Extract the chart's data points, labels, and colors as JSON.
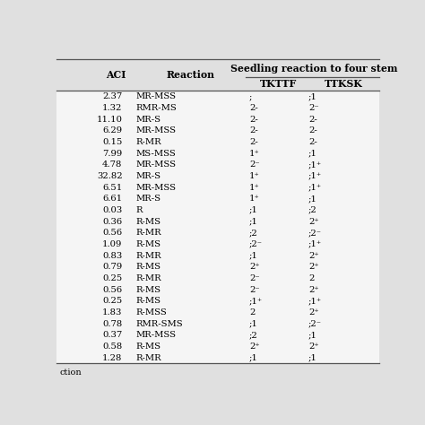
{
  "title": "Seedling reaction to four stem",
  "rows": [
    [
      "2.37",
      "MR-MSS",
      ";",
      ";1"
    ],
    [
      "1.32",
      "RMR-MS",
      "2-",
      "2⁻"
    ],
    [
      "11.10",
      "MR-S",
      "2-",
      "2-"
    ],
    [
      "6.29",
      "MR-MSS",
      "2-",
      "2-"
    ],
    [
      "0.15",
      "R-MR",
      "2-",
      "2-"
    ],
    [
      "7.99",
      "MS-MSS",
      "1⁺",
      ";1"
    ],
    [
      "4.78",
      "MR-MSS",
      "2⁻",
      ";1⁺"
    ],
    [
      "32.82",
      "MR-S",
      "1⁺",
      ";1⁺"
    ],
    [
      "6.51",
      "MR-MSS",
      "1⁺",
      ";1⁺"
    ],
    [
      "6.61",
      "MR-S",
      "1⁺",
      ";1"
    ],
    [
      "0.03",
      "R",
      ";1",
      ";2"
    ],
    [
      "0.36",
      "R-MS",
      ";1",
      "2⁺"
    ],
    [
      "0.56",
      "R-MR",
      ";2",
      ";2⁻"
    ],
    [
      "1.09",
      "R-MS",
      ";2⁻",
      ";1⁺"
    ],
    [
      "0.83",
      "R-MR",
      ";1",
      "2⁺"
    ],
    [
      "0.79",
      "R-MS",
      "2⁺",
      "2⁺"
    ],
    [
      "0.25",
      "R-MR",
      "2⁻",
      "2"
    ],
    [
      "0.56",
      "R-MS",
      "2⁻",
      "2⁺"
    ],
    [
      "0.25",
      "R-MS",
      ";1⁺",
      ";1⁺"
    ],
    [
      "1.83",
      "R-MSS",
      "2",
      "2⁺"
    ],
    [
      "0.78",
      "RMR-SMS",
      ";1",
      ";2⁻"
    ],
    [
      "0.37",
      "MR-MSS",
      ";2",
      ";1"
    ],
    [
      "0.58",
      "R-MS",
      "2⁺",
      "2⁺"
    ],
    [
      "1.28",
      "R-MR",
      ";1",
      ";1"
    ]
  ],
  "bg_color": "#e0e0e0",
  "row_bg": "#f5f5f5",
  "line_color": "#555555",
  "font_size": 7.2,
  "header_font_size": 7.8,
  "bottom_label": "ction"
}
